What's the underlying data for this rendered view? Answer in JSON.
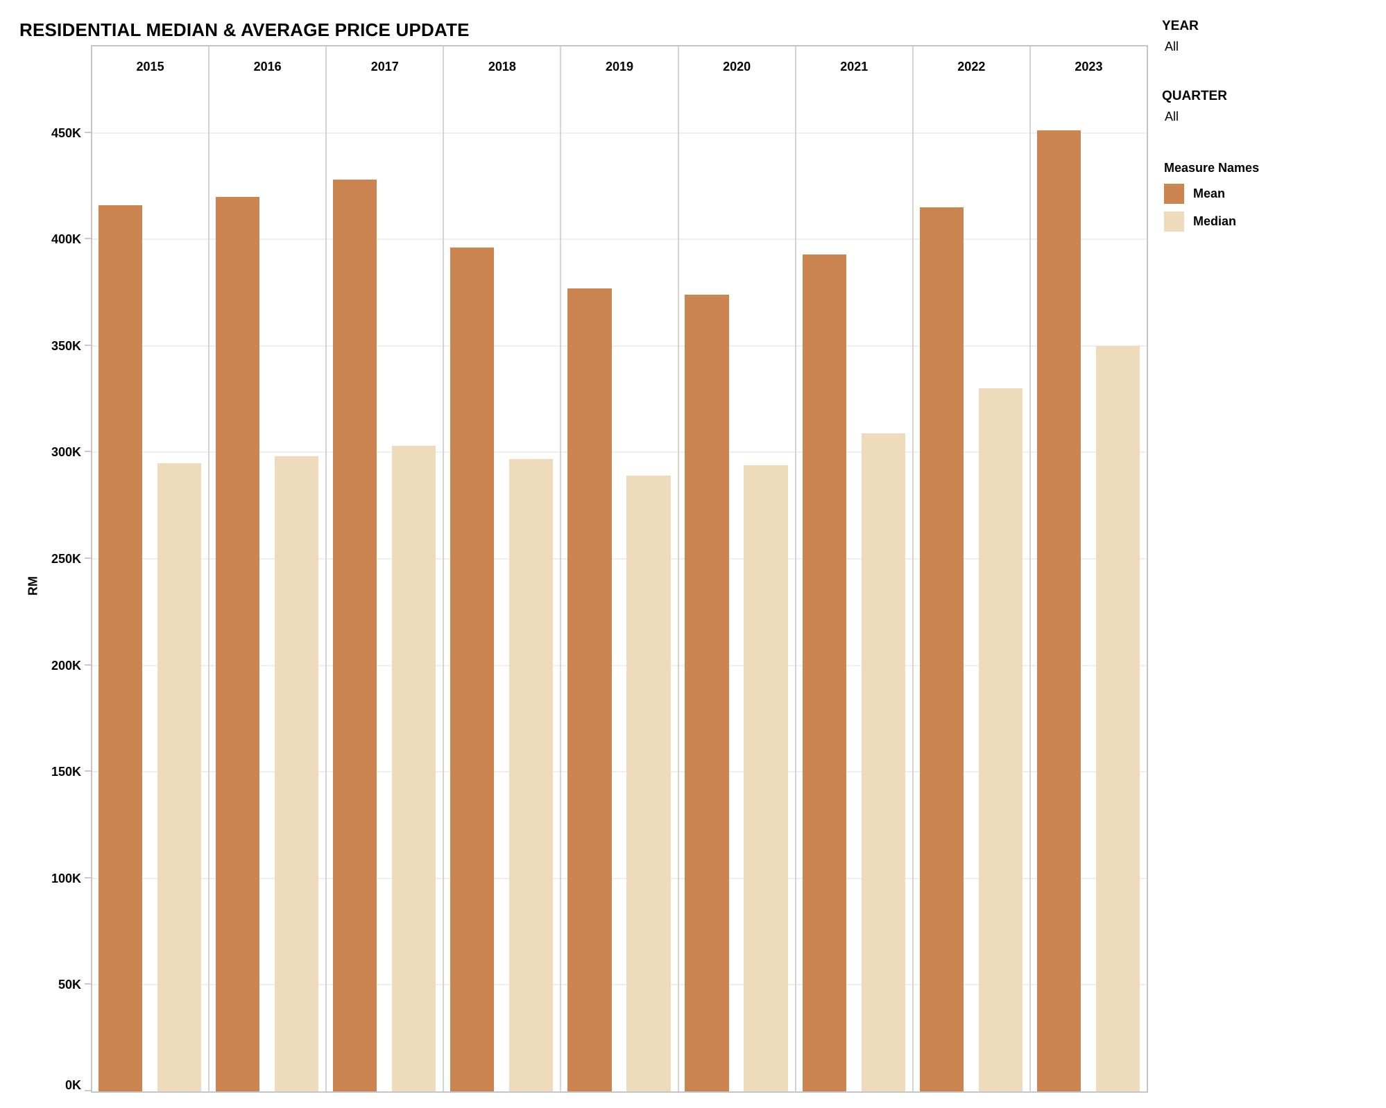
{
  "title": "RESIDENTIAL MEDIAN & AVERAGE PRICE UPDATE",
  "filters": {
    "year": {
      "label": "YEAR",
      "value": "All"
    },
    "quarter": {
      "label": "QUARTER",
      "value": "All"
    }
  },
  "legend": {
    "title": "Measure Names",
    "items": [
      {
        "label": "Mean",
        "color": "#CC8551"
      },
      {
        "label": "Median",
        "color": "#EDDBBB"
      }
    ]
  },
  "chart_data": {
    "type": "bar",
    "title": "RESIDENTIAL MEDIAN & AVERAGE PRICE UPDATE",
    "categories": [
      "2015",
      "2016",
      "2017",
      "2018",
      "2019",
      "2020",
      "2021",
      "2022",
      "2023"
    ],
    "series": [
      {
        "name": "Mean",
        "color": "#CC8551",
        "values_K": [
          416,
          420,
          428,
          396,
          377,
          374,
          393,
          415,
          451
        ]
      },
      {
        "name": "Median",
        "color": "#EDDBBB",
        "values_K": [
          295,
          298,
          303,
          297,
          289,
          294,
          309,
          330,
          350
        ]
      }
    ],
    "unit": "RM thousands (K)",
    "xlabel": "",
    "ylabel": "RM",
    "ylim_K": [
      0,
      473.6
    ],
    "yticks_K": [
      0,
      50,
      100,
      150,
      200,
      250,
      300,
      350,
      400,
      450
    ],
    "ytick_labels": [
      "0K",
      "50K",
      "100K",
      "150K",
      "200K",
      "250K",
      "300K",
      "350K",
      "400K",
      "450K"
    ],
    "grid": true,
    "legend_position": "right"
  }
}
